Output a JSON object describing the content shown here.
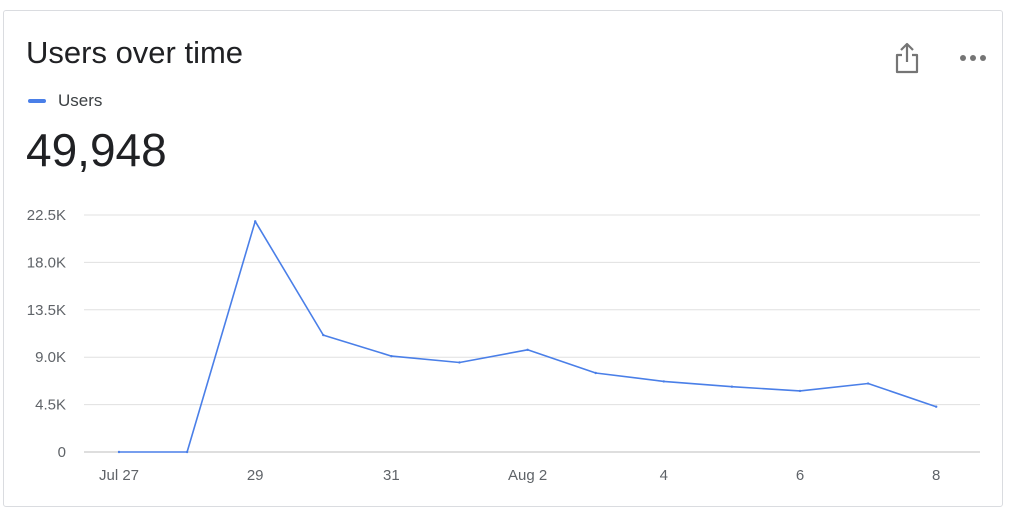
{
  "card": {
    "title": "Users over time",
    "legend_label": "Users",
    "metric_value": "49,948",
    "actions": [
      {
        "name": "share",
        "icon": "share-icon"
      },
      {
        "name": "more",
        "icon": "more-horizontal-icon"
      }
    ]
  },
  "colors": {
    "series": "#4a7fe8",
    "grid": "#e0e0e0",
    "axis": "#bdbdbd",
    "text": "#5f6368",
    "icon": "#757575"
  },
  "chart_data": {
    "type": "line",
    "title": "Users over time",
    "xlabel": "",
    "ylabel": "",
    "x": [
      "Jul 27",
      "Jul 28",
      "Jul 29",
      "Jul 30",
      "Jul 31",
      "Aug 1",
      "Aug 2",
      "Aug 3",
      "Aug 4",
      "Aug 5",
      "Aug 6",
      "Aug 7",
      "Aug 8"
    ],
    "x_tick_labels": [
      {
        "x": "Jul 27",
        "label": "Jul 27"
      },
      {
        "x": "Jul 29",
        "label": "29"
      },
      {
        "x": "Jul 31",
        "label": "31"
      },
      {
        "x": "Aug 2",
        "label": "Aug 2"
      },
      {
        "x": "Aug 4",
        "label": "4"
      },
      {
        "x": "Aug 6",
        "label": "6"
      },
      {
        "x": "Aug 8",
        "label": "8"
      }
    ],
    "y_ticks": [
      0,
      4500,
      9000,
      13500,
      18000,
      22500
    ],
    "y_tick_labels": [
      "0",
      "4.5K",
      "9.0K",
      "13.5K",
      "18.0K",
      "22.5K"
    ],
    "ylim": [
      0,
      22500
    ],
    "grid": true,
    "legend": "top-left",
    "series": [
      {
        "name": "Users",
        "values": [
          0,
          0,
          21900,
          11100,
          9100,
          8500,
          9700,
          7500,
          6700,
          6200,
          5800,
          6500,
          4300
        ]
      }
    ]
  }
}
